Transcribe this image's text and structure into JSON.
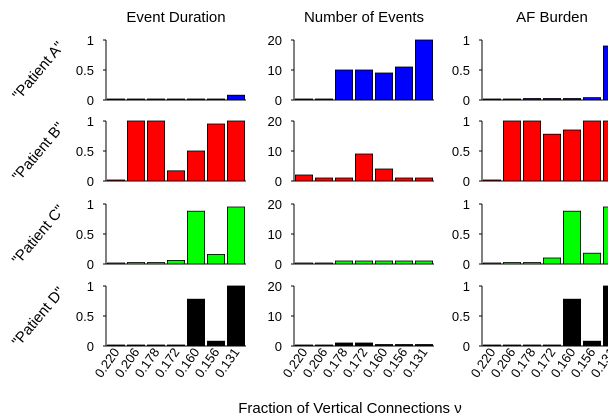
{
  "x_axis_label": "Fraction of Vertical Connections ν",
  "row_labels": [
    "\"Patient A\"",
    "\"Patient B\"",
    "\"Patient C\"",
    "\"Patient D\""
  ],
  "row_colors": [
    "#0000ff",
    "#ff0000",
    "#00ff00",
    "#000000"
  ],
  "column_titles": [
    "Event Duration",
    "Number of Events",
    "AF Burden"
  ],
  "chart_data": {
    "type": "bar",
    "categories": [
      "0.220",
      "0.206",
      "0.178",
      "0.172",
      "0.160",
      "0.156",
      "0.131"
    ],
    "xlabel": "Fraction of Vertical Connections ν",
    "panels": [
      {
        "row": "\"Patient A\"",
        "column": "Event Duration",
        "yticks": [
          "0",
          "0.5",
          "1"
        ],
        "ylim": [
          0,
          1
        ],
        "color": "#0000ff",
        "values": [
          0,
          0,
          0,
          0,
          0,
          0,
          0.08
        ]
      },
      {
        "row": "\"Patient A\"",
        "column": "Number of Events",
        "yticks": [
          "0",
          "10",
          "20"
        ],
        "ylim": [
          0,
          20
        ],
        "color": "#0000ff",
        "values": [
          0,
          0,
          10,
          10,
          9,
          11,
          20
        ]
      },
      {
        "row": "\"Patient A\"",
        "column": "AF Burden",
        "yticks": [
          "0",
          "0.5",
          "1"
        ],
        "ylim": [
          0,
          1
        ],
        "color": "#0000ff",
        "values": [
          0,
          0,
          0.02,
          0.02,
          0.02,
          0.04,
          0.9
        ]
      },
      {
        "row": "\"Patient B\"",
        "column": "Event Duration",
        "yticks": [
          "0",
          "0.5",
          "1"
        ],
        "ylim": [
          0,
          1
        ],
        "color": "#ff0000",
        "values": [
          0,
          1.0,
          1.0,
          0.17,
          0.5,
          0.95,
          1.0
        ]
      },
      {
        "row": "\"Patient B\"",
        "column": "Number of Events",
        "yticks": [
          "0",
          "10",
          "20"
        ],
        "ylim": [
          0,
          20
        ],
        "color": "#ff0000",
        "values": [
          2,
          1,
          1,
          9,
          4,
          1,
          1
        ]
      },
      {
        "row": "\"Patient B\"",
        "column": "AF Burden",
        "yticks": [
          "0",
          "0.5",
          "1"
        ],
        "ylim": [
          0,
          1
        ],
        "color": "#ff0000",
        "values": [
          0,
          1.0,
          1.0,
          0.78,
          0.85,
          1.0,
          1.0
        ]
      },
      {
        "row": "\"Patient C\"",
        "column": "Event Duration",
        "yticks": [
          "0",
          "0.5",
          "1"
        ],
        "ylim": [
          0,
          1
        ],
        "color": "#00ff00",
        "values": [
          0,
          0.01,
          0.01,
          0.06,
          0.88,
          0.16,
          0.95
        ]
      },
      {
        "row": "\"Patient C\"",
        "column": "Number of Events",
        "yticks": [
          "0",
          "10",
          "20"
        ],
        "ylim": [
          0,
          20
        ],
        "color": "#00ff00",
        "values": [
          0,
          0,
          1,
          1,
          1,
          1,
          1
        ]
      },
      {
        "row": "\"Patient C\"",
        "column": "AF Burden",
        "yticks": [
          "0",
          "0.5",
          "1"
        ],
        "ylim": [
          0,
          1
        ],
        "color": "#00ff00",
        "values": [
          0,
          0.01,
          0.01,
          0.1,
          0.88,
          0.18,
          0.95
        ]
      },
      {
        "row": "\"Patient D\"",
        "column": "Event Duration",
        "yticks": [
          "0",
          "0.5",
          "1"
        ],
        "ylim": [
          0,
          1
        ],
        "color": "#000000",
        "values": [
          0,
          0,
          0,
          0,
          0.78,
          0.08,
          1.0
        ]
      },
      {
        "row": "\"Patient D\"",
        "column": "Number of Events",
        "yticks": [
          "0",
          "10",
          "20"
        ],
        "ylim": [
          0,
          20
        ],
        "color": "#000000",
        "values": [
          0,
          0,
          1,
          1,
          0.5,
          0.5,
          0.5
        ]
      },
      {
        "row": "\"Patient D\"",
        "column": "AF Burden",
        "yticks": [
          "0",
          "0.5",
          "1"
        ],
        "ylim": [
          0,
          1
        ],
        "color": "#000000",
        "values": [
          0,
          0,
          0,
          0,
          0.78,
          0.08,
          1.0
        ]
      }
    ]
  }
}
